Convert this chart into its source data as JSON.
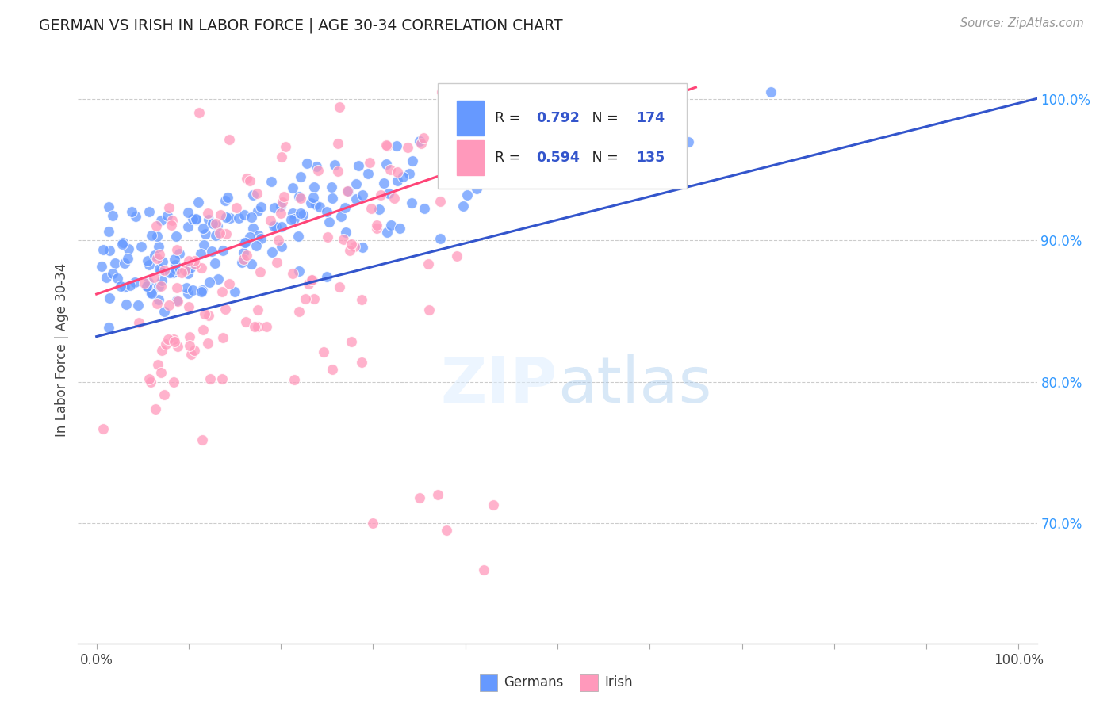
{
  "title": "GERMAN VS IRISH IN LABOR FORCE | AGE 30-34 CORRELATION CHART",
  "source": "Source: ZipAtlas.com",
  "ylabel": "In Labor Force | Age 30-34",
  "xlim": [
    -0.02,
    1.02
  ],
  "ylim": [
    0.615,
    1.03
  ],
  "x_tick_positions": [
    0.0,
    1.0
  ],
  "x_tick_labels": [
    "0.0%",
    "100.0%"
  ],
  "y_tick_values": [
    0.7,
    0.8,
    0.9,
    1.0
  ],
  "y_tick_labels": [
    "70.0%",
    "80.0%",
    "90.0%",
    "100.0%"
  ],
  "german_color": "#6699ff",
  "irish_color": "#ff99bb",
  "german_line_color": "#3355cc",
  "irish_line_color": "#ff4477",
  "german_R": 0.792,
  "german_N": 174,
  "irish_R": 0.594,
  "irish_N": 135,
  "background_color": "#ffffff",
  "grid_color": "#cccccc",
  "title_color": "#222222",
  "axis_label_color": "#444444",
  "right_tick_color": "#3399ff",
  "source_color": "#999999",
  "legend_label_german": "Germans",
  "legend_label_irish": "Irish"
}
